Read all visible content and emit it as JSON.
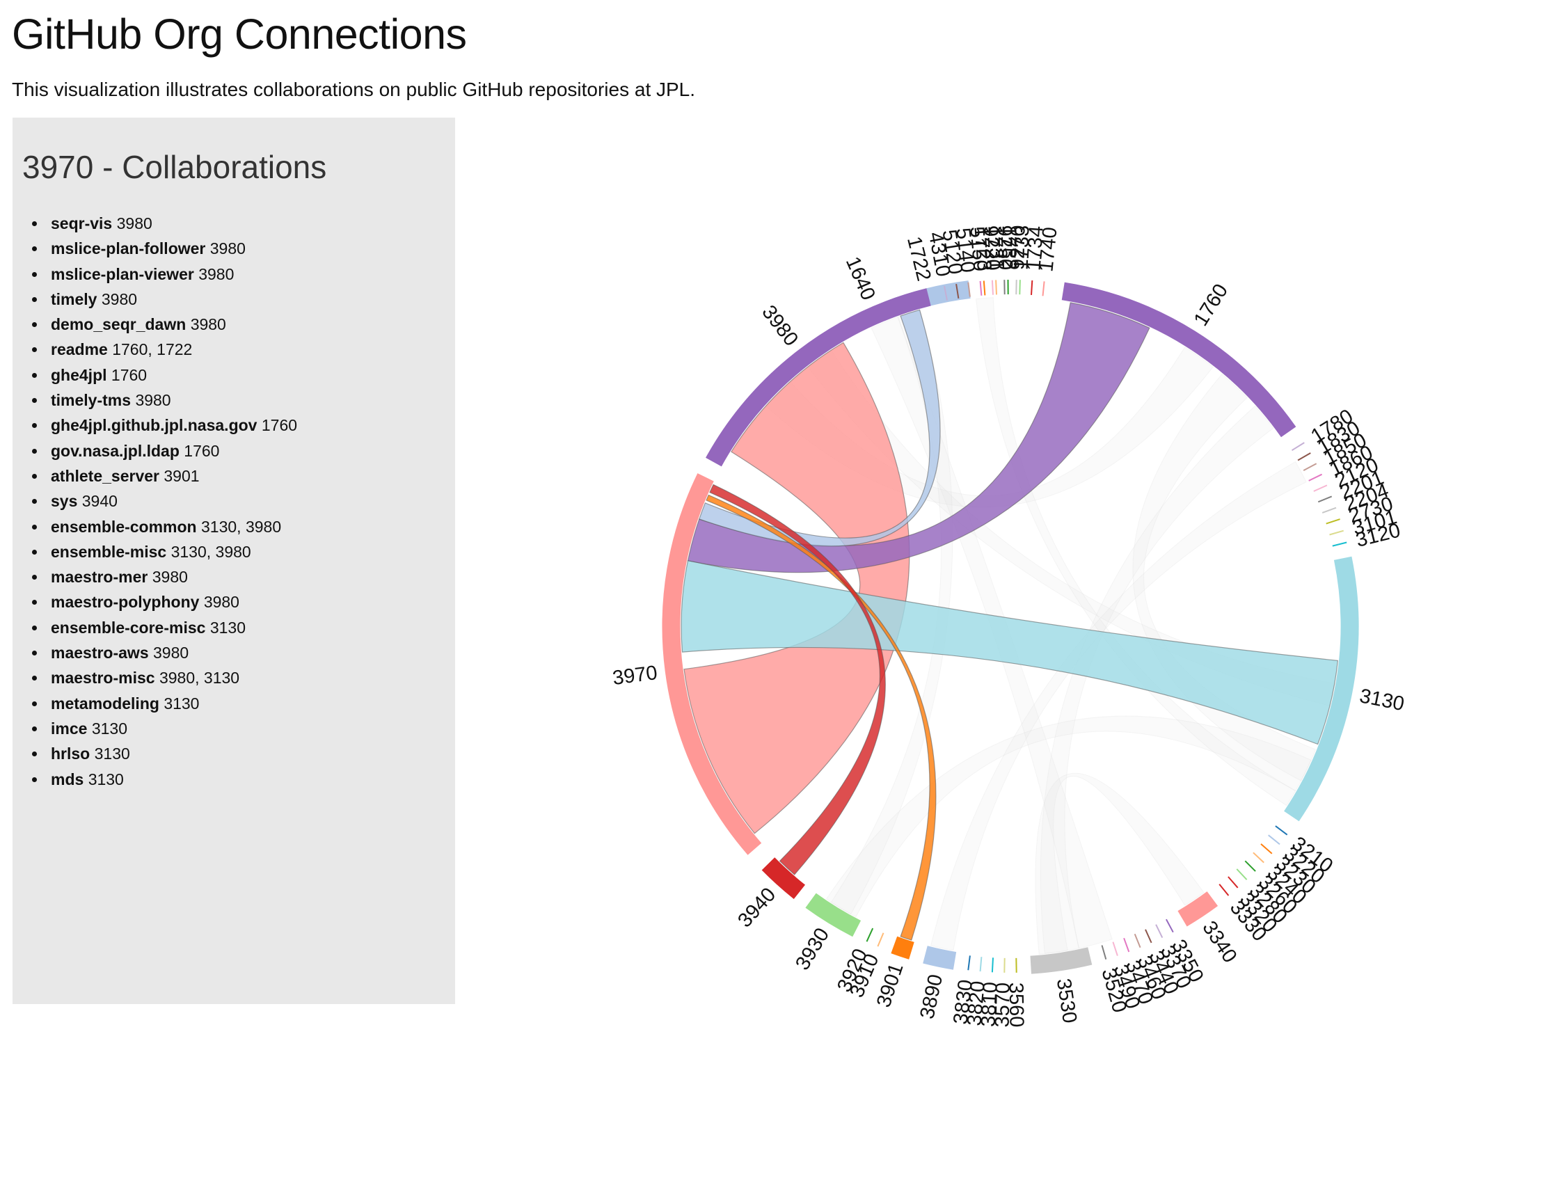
{
  "header": {
    "title": "GitHub Org Connections",
    "subtitle": "This visualization illustrates collaborations on public GitHub repositories at JPL."
  },
  "panel": {
    "title": "3970 - Collaborations",
    "items": [
      {
        "repo": "seqr-vis",
        "orgs": "3980"
      },
      {
        "repo": "mslice-plan-follower",
        "orgs": "3980"
      },
      {
        "repo": "mslice-plan-viewer",
        "orgs": "3980"
      },
      {
        "repo": "timely",
        "orgs": "3980"
      },
      {
        "repo": "demo_seqr_dawn",
        "orgs": "3980"
      },
      {
        "repo": "readme",
        "orgs": "1760, 1722"
      },
      {
        "repo": "ghe4jpl",
        "orgs": "1760"
      },
      {
        "repo": "timely-tms",
        "orgs": "3980"
      },
      {
        "repo": "ghe4jpl.github.jpl.nasa.gov",
        "orgs": "1760"
      },
      {
        "repo": "gov.nasa.jpl.ldap",
        "orgs": "1760"
      },
      {
        "repo": "athlete_server",
        "orgs": "3901"
      },
      {
        "repo": "sys",
        "orgs": "3940"
      },
      {
        "repo": "ensemble-common",
        "orgs": "3130, 3980"
      },
      {
        "repo": "ensemble-misc",
        "orgs": "3130, 3980"
      },
      {
        "repo": "maestro-mer",
        "orgs": "3980"
      },
      {
        "repo": "maestro-polyphony",
        "orgs": "3980"
      },
      {
        "repo": "ensemble-core-misc",
        "orgs": "3130"
      },
      {
        "repo": "maestro-aws",
        "orgs": "3980"
      },
      {
        "repo": "maestro-misc",
        "orgs": "3980, 3130"
      },
      {
        "repo": "metamodeling",
        "orgs": "3130"
      },
      {
        "repo": "imce",
        "orgs": "3130"
      },
      {
        "repo": "hrlso",
        "orgs": "3130"
      },
      {
        "repo": "mds",
        "orgs": "3130"
      }
    ]
  },
  "chord": {
    "selected": "3970",
    "groups": [
      {
        "id": "1640",
        "start": -23.5,
        "end": -23.2,
        "color": "#1f77b4"
      },
      {
        "id": "1722",
        "start": -21.0,
        "end": -7.0,
        "color": "#aec7e8"
      },
      {
        "id": "1723",
        "start": -4.4,
        "end": -4.1,
        "color": "#ff7f0e"
      },
      {
        "id": "1731",
        "start": -2.4,
        "end": -2.1,
        "color": "#ffbb78"
      },
      {
        "id": "1732",
        "start": -0.4,
        "end": -0.1,
        "color": "#2ca02c"
      },
      {
        "id": "1733",
        "start": 1.6,
        "end": 1.9,
        "color": "#98df8a"
      },
      {
        "id": "1734",
        "start": 3.6,
        "end": 3.9,
        "color": "#d62728"
      },
      {
        "id": "1740",
        "start": 5.6,
        "end": 5.9,
        "color": "#ff9896"
      },
      {
        "id": "1760",
        "start": 9.0,
        "end": 55.0,
        "color": "#9467bd"
      },
      {
        "id": "1780",
        "start": 58.0,
        "end": 58.3,
        "color": "#c5b0d5"
      },
      {
        "id": "1830",
        "start": 60.0,
        "end": 60.3,
        "color": "#8c564b"
      },
      {
        "id": "1850",
        "start": 62.0,
        "end": 62.3,
        "color": "#c49c94"
      },
      {
        "id": "1860",
        "start": 64.0,
        "end": 64.3,
        "color": "#e377c2"
      },
      {
        "id": "2120",
        "start": 66.0,
        "end": 66.3,
        "color": "#f7b6d2"
      },
      {
        "id": "2201",
        "start": 68.0,
        "end": 68.3,
        "color": "#7f7f7f"
      },
      {
        "id": "2204",
        "start": 70.0,
        "end": 70.3,
        "color": "#c7c7c7"
      },
      {
        "id": "2730",
        "start": 72.0,
        "end": 72.3,
        "color": "#bcbd22"
      },
      {
        "id": "3101",
        "start": 74.0,
        "end": 74.3,
        "color": "#dbdb8d"
      },
      {
        "id": "3120",
        "start": 76.0,
        "end": 76.3,
        "color": "#17becf"
      },
      {
        "id": "3130",
        "start": 78.5,
        "end": 124.0,
        "color": "#9edae5"
      },
      {
        "id": "3210",
        "start": 127.0,
        "end": 127.3,
        "color": "#1f77b4"
      },
      {
        "id": "3220",
        "start": 129.0,
        "end": 129.3,
        "color": "#aec7e8"
      },
      {
        "id": "3230",
        "start": 131.0,
        "end": 131.3,
        "color": "#ff7f0e"
      },
      {
        "id": "3240",
        "start": 133.0,
        "end": 133.3,
        "color": "#ffbb78"
      },
      {
        "id": "3260",
        "start": 135.0,
        "end": 135.3,
        "color": "#2ca02c"
      },
      {
        "id": "3280",
        "start": 137.0,
        "end": 137.3,
        "color": "#98df8a"
      },
      {
        "id": "3320",
        "start": 139.0,
        "end": 139.3,
        "color": "#d62728"
      },
      {
        "id": "3330",
        "start": 141.0,
        "end": 141.3,
        "color": "#d62728"
      },
      {
        "id": "3340",
        "start": 143.5,
        "end": 149.5,
        "color": "#ff9896"
      },
      {
        "id": "3350",
        "start": 152.0,
        "end": 152.3,
        "color": "#9467bd"
      },
      {
        "id": "3370",
        "start": 154.0,
        "end": 154.3,
        "color": "#c5b0d5"
      },
      {
        "id": "3440",
        "start": 156.0,
        "end": 156.3,
        "color": "#8c564b"
      },
      {
        "id": "3460",
        "start": 158.0,
        "end": 158.3,
        "color": "#c49c94"
      },
      {
        "id": "3470",
        "start": 160.0,
        "end": 160.3,
        "color": "#e377c2"
      },
      {
        "id": "3490",
        "start": 162.0,
        "end": 162.3,
        "color": "#f7b6d2"
      },
      {
        "id": "3520",
        "start": 164.0,
        "end": 164.3,
        "color": "#7f7f7f"
      },
      {
        "id": "3530",
        "start": 166.5,
        "end": 176.5,
        "color": "#c7c7c7"
      },
      {
        "id": "3560",
        "start": 179.0,
        "end": 179.3,
        "color": "#bcbd22"
      },
      {
        "id": "3570",
        "start": 181.0,
        "end": 181.3,
        "color": "#dbdb8d"
      },
      {
        "id": "3810",
        "start": 183.0,
        "end": 183.3,
        "color": "#17becf"
      },
      {
        "id": "3820",
        "start": 185.0,
        "end": 185.3,
        "color": "#9edae5"
      },
      {
        "id": "3830",
        "start": 187.0,
        "end": 187.3,
        "color": "#1f77b4"
      },
      {
        "id": "3890",
        "start": 189.5,
        "end": 194.5,
        "color": "#aec7e8"
      },
      {
        "id": "3901",
        "start": 197.0,
        "end": 200.0,
        "color": "#ff7f0e"
      },
      {
        "id": "3910",
        "start": 202.5,
        "end": 202.8,
        "color": "#ffbb78"
      },
      {
        "id": "3920",
        "start": 204.5,
        "end": 204.8,
        "color": "#2ca02c"
      },
      {
        "id": "3930",
        "start": 207.0,
        "end": 216.0,
        "color": "#98df8a"
      },
      {
        "id": "3940",
        "start": 218.5,
        "end": 225.5,
        "color": "#d62728"
      },
      {
        "id": "3970",
        "start": 229.0,
        "end": 296.0,
        "color": "#ff9896"
      },
      {
        "id": "3980",
        "start": 299.0,
        "end": 346.0,
        "color": "#9467bd"
      },
      {
        "id": "4310",
        "start": 349.0,
        "end": 349.3,
        "color": "#c5b0d5"
      },
      {
        "id": "5120",
        "start": 351.0,
        "end": 351.3,
        "color": "#8c564b"
      },
      {
        "id": "5140",
        "start": 353.0,
        "end": 353.3,
        "color": "#c49c94"
      },
      {
        "id": "5150",
        "start": 355.0,
        "end": 355.3,
        "color": "#e377c2"
      },
      {
        "id": "9220",
        "start": 357.0,
        "end": 357.3,
        "color": "#f7b6d2"
      },
      {
        "id": "9250",
        "start": 359.0,
        "end": 359.3,
        "color": "#7f7f7f"
      },
      {
        "id": "9270",
        "start": 361.0,
        "end": 361.3,
        "color": "#c7c7c7"
      }
    ],
    "links": [
      {
        "source": "3970",
        "s0": 231.0,
        "s1": 262.5,
        "target": "3980",
        "t0": 302.0,
        "t1": 329.5,
        "color": "#ff9896"
      },
      {
        "source": "3970",
        "s0": 265.5,
        "s1": 281.5,
        "target": "3130",
        "t0": 96.0,
        "t1": 111.0,
        "color": "#9edae5"
      },
      {
        "source": "3970",
        "s0": 281.5,
        "s1": 289.0,
        "target": "1760",
        "t0": 10.5,
        "t1": 25.0,
        "color": "#9467bd"
      },
      {
        "source": "3970",
        "s0": 289.0,
        "s1": 292.0,
        "target": "1722",
        "t0": -19.5,
        "t1": -16.0,
        "color": "#aec7e8"
      },
      {
        "source": "3970",
        "s0": 292.5,
        "s1": 293.5,
        "target": "3901",
        "t0": 197.5,
        "t1": 199.5,
        "color": "#ff7f0e"
      },
      {
        "source": "3970",
        "s0": 294.0,
        "s1": 295.5,
        "target": "3940",
        "t0": 221.0,
        "t1": 224.5,
        "color": "#d62728"
      }
    ],
    "faded_links": [
      {
        "s0": 312.0,
        "s1": 318.0,
        "t0": 32.0,
        "t1": 38.0
      },
      {
        "s0": 322.0,
        "s1": 327.0,
        "t0": 100.0,
        "t1": 104.0
      },
      {
        "s0": 335.0,
        "s1": 340.0,
        "t0": 162.0,
        "t1": 168.0
      },
      {
        "s0": 40.0,
        "s1": 46.0,
        "t0": 112.0,
        "t1": 118.0
      },
      {
        "s0": 48.0,
        "s1": 53.0,
        "t0": 168.0,
        "t1": 174.0
      },
      {
        "s0": 114.0,
        "s1": 120.0,
        "t0": 208.0,
        "t1": 214.0
      },
      {
        "s0": 144.0,
        "s1": 148.0,
        "t0": 170.0,
        "t1": 175.0
      },
      {
        "s0": 190.0,
        "s1": 194.0,
        "t0": 60.0,
        "t1": 64.0
      },
      {
        "s0": -6.0,
        "s1": -3.0,
        "t0": 120.0,
        "t1": 123.0
      },
      {
        "s0": 209.0,
        "s1": 213.0,
        "t0": 340.0,
        "t1": 344.0
      }
    ]
  }
}
